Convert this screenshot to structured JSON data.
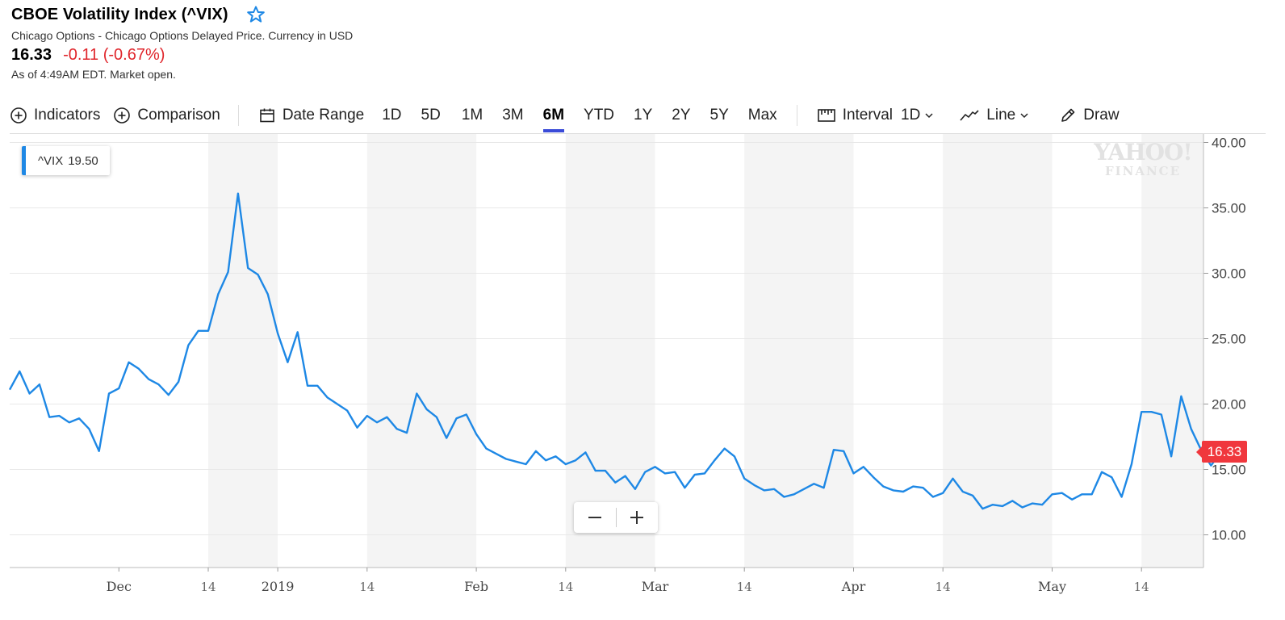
{
  "header": {
    "title": "CBOE Volatility Index (^VIX)",
    "source": "Chicago Options - Chicago Options Delayed Price. Currency in USD",
    "price": "16.33",
    "change": "-0.11 (-0.67%)",
    "market_status": "As of 4:49AM EDT. Market open.",
    "star_icon": "star-outline-icon"
  },
  "toolbar": {
    "indicators_label": "Indicators",
    "comparison_label": "Comparison",
    "date_range_label": "Date Range",
    "ranges": [
      "1D",
      "5D",
      "1M",
      "3M",
      "6M",
      "YTD",
      "1Y",
      "2Y",
      "5Y",
      "Max"
    ],
    "active_range": "6M",
    "interval_label": "Interval",
    "interval_value": "1D",
    "chart_type_label": "Line",
    "draw_label": "Draw"
  },
  "tooltip": {
    "symbol": "^VIX",
    "value": "19.50"
  },
  "watermark": {
    "line1": "YAHOO!",
    "line2": "FINANCE"
  },
  "price_flag": "16.33",
  "colors": {
    "line": "#1e88e5",
    "negative": "#e0262c",
    "flag": "#f0373d",
    "active_tab": "#3a4bd8"
  },
  "chart_data": {
    "type": "line",
    "title": "",
    "xlabel": "",
    "ylabel": "",
    "ylim": [
      7.5,
      40.5
    ],
    "y_ticks": [
      "10.00",
      "15.00",
      "20.00",
      "25.00",
      "30.00",
      "35.00",
      "40.00"
    ],
    "x_ticks": [
      "Dec",
      "14",
      "2019",
      "14",
      "Feb",
      "14",
      "Mar",
      "14",
      "Apr",
      "14",
      "May",
      "14"
    ],
    "x_tick_positions": [
      11,
      20,
      27,
      36,
      47,
      56,
      65,
      74,
      85,
      94,
      105,
      114
    ],
    "grid": true,
    "series": [
      {
        "values": [
          21.1,
          22.5,
          20.8,
          21.5,
          19.0,
          19.1,
          18.6,
          18.9,
          18.1,
          16.4,
          20.8,
          21.2,
          23.2,
          22.7,
          21.9,
          21.5,
          20.7,
          21.7,
          24.5,
          25.6,
          25.6,
          28.4,
          30.1,
          36.1,
          30.4,
          29.9,
          28.4,
          25.4,
          23.2,
          25.5,
          21.4,
          21.4,
          20.5,
          20.0,
          19.5,
          18.2,
          19.1,
          18.6,
          19.0,
          18.1,
          17.8,
          20.8,
          19.6,
          19.0,
          17.4,
          18.9,
          19.2,
          17.7,
          16.6,
          16.2,
          15.8,
          15.6,
          15.4,
          16.4,
          15.7,
          16.0,
          15.4,
          15.7,
          16.3,
          14.9,
          14.9,
          14.0,
          14.5,
          13.5,
          14.8,
          15.2,
          14.7,
          14.8,
          13.6,
          14.6,
          14.7,
          15.7,
          16.6,
          16.0,
          14.3,
          13.8,
          13.4,
          13.5,
          12.9,
          13.1,
          13.5,
          13.9,
          13.6,
          16.5,
          16.4,
          14.7,
          15.2,
          14.4,
          13.7,
          13.4,
          13.3,
          13.7,
          13.6,
          12.9,
          13.2,
          14.3,
          13.3,
          13.0,
          12.0,
          12.3,
          12.2,
          12.6,
          12.1,
          12.4,
          12.3,
          13.1,
          13.2,
          12.7,
          13.1,
          13.1,
          14.8,
          14.4,
          12.9,
          15.4,
          19.4,
          19.4,
          19.2,
          16.0,
          20.6,
          18.1,
          16.5,
          15.3,
          16.3
        ]
      }
    ],
    "last_value": 16.33
  }
}
